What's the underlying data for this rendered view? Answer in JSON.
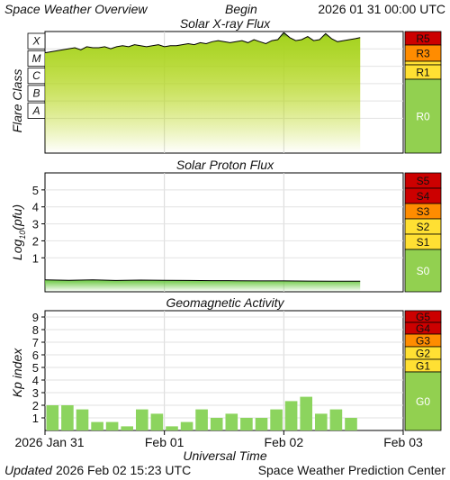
{
  "header": {
    "left_title": "Space Weather Overview",
    "begin_label": "Begin",
    "begin_time": "2026 01 31 00:00 UTC"
  },
  "footer": {
    "updated_label": "Updated",
    "updated_time": "2026 Feb 02 15:23 UTC",
    "center": "Space Weather Prediction Center"
  },
  "x_axis": {
    "label": "Universal Time",
    "tick_labels": [
      "2026 Jan 31",
      "Feb 01",
      "Feb 02",
      "Feb 03"
    ],
    "range_days": [
      0,
      3
    ]
  },
  "colors": {
    "line": "#000000",
    "xray_fill": "#e8e000",
    "green_fill": "#6ac840",
    "kp_bar": "#8cd45e",
    "scale_red": "#cc0000",
    "scale_orange": "#ff8c00",
    "scale_yellow": "#ffe033",
    "scale_green": "#92d050"
  },
  "chart_data": [
    {
      "type": "area",
      "title": "Solar X-ray Flux",
      "ylabel": "Flare Class",
      "y_class_labels": [
        "X",
        "M",
        "C",
        "B",
        "A"
      ],
      "ylim": [
        0,
        6
      ],
      "scale_levels": [
        "R5",
        "R3",
        "R1",
        "R0"
      ],
      "grid": true,
      "series": [
        {
          "x": [
            0.0,
            0.05,
            0.1,
            0.15,
            0.2,
            0.25,
            0.3,
            0.35,
            0.4,
            0.45,
            0.5,
            0.55,
            0.6,
            0.65,
            0.7,
            0.75,
            0.8,
            0.85,
            0.9,
            0.95,
            1.0,
            1.05,
            1.1,
            1.15,
            1.2,
            1.25,
            1.3,
            1.35,
            1.4,
            1.45,
            1.5,
            1.55,
            1.6,
            1.65,
            1.7,
            1.75,
            1.8,
            1.85,
            1.9,
            1.95,
            2.0,
            2.05,
            2.1,
            2.15,
            2.2,
            2.25,
            2.3,
            2.35,
            2.4,
            2.45,
            2.5,
            2.55,
            2.6,
            2.64
          ],
          "y": [
            4.95,
            5.0,
            5.05,
            5.1,
            5.15,
            5.2,
            5.1,
            5.25,
            5.2,
            5.2,
            5.25,
            5.15,
            5.25,
            5.3,
            5.25,
            5.35,
            5.3,
            5.25,
            5.3,
            5.35,
            5.25,
            5.3,
            5.3,
            5.35,
            5.4,
            5.35,
            5.45,
            5.4,
            5.5,
            5.55,
            5.5,
            5.45,
            5.5,
            5.55,
            5.45,
            5.6,
            5.5,
            5.4,
            5.55,
            5.6,
            5.95,
            5.7,
            5.55,
            5.6,
            5.75,
            5.55,
            5.6,
            5.9,
            5.65,
            5.5,
            5.55,
            5.6,
            5.65,
            5.7
          ]
        }
      ]
    },
    {
      "type": "area",
      "title": "Solar Proton Flux",
      "ylabel": "Log10(pfu)",
      "ylim": [
        -1.0,
        6.0
      ],
      "yticks": [
        1,
        2,
        3,
        4,
        5
      ],
      "scale_levels": [
        "S5",
        "S4",
        "S3",
        "S2",
        "S1",
        "S0"
      ],
      "grid": true,
      "series": [
        {
          "x": [
            0.0,
            0.2,
            0.4,
            0.6,
            0.8,
            1.0,
            1.2,
            1.4,
            1.6,
            1.8,
            2.0,
            2.2,
            2.4,
            2.64
          ],
          "y": [
            -0.3,
            -0.32,
            -0.3,
            -0.33,
            -0.31,
            -0.32,
            -0.33,
            -0.34,
            -0.35,
            -0.36,
            -0.36,
            -0.37,
            -0.38,
            -0.38
          ]
        }
      ]
    },
    {
      "type": "bar",
      "title": "Geomagnetic Activity",
      "ylabel": "Kp index",
      "ylim": [
        0,
        9.5
      ],
      "yticks": [
        1,
        2,
        3,
        4,
        5,
        6,
        7,
        8,
        9
      ],
      "scale_levels": [
        "G5",
        "G4",
        "G3",
        "G2",
        "G1",
        "G0"
      ],
      "grid": true,
      "bar_width_days": 0.125,
      "values": [
        2.0,
        2.0,
        1.67,
        0.67,
        0.67,
        0.33,
        1.67,
        1.33,
        0.33,
        0.67,
        1.67,
        1.0,
        1.33,
        1.0,
        1.0,
        1.67,
        2.33,
        2.67,
        1.33,
        1.67,
        1.0
      ]
    }
  ]
}
